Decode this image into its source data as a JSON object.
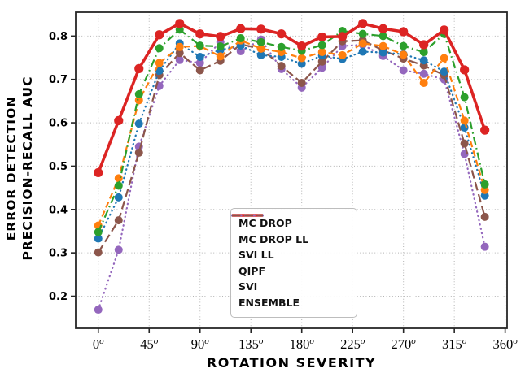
{
  "figure": {
    "ylabel_line1": "ERROR  DETECTION",
    "ylabel_line2": "PRECISION-RECALL  AUC",
    "xlabel": "ROTATION  SEVERITY"
  },
  "chart_data": {
    "type": "line",
    "title": "",
    "xlabel": "ROTATION  SEVERITY",
    "ylabel": "ERROR DETECTION PRECISION-RECALL AUC",
    "x_unit": "degrees",
    "degree_suffix": "o",
    "grid": true,
    "legend_position": "lower center",
    "xlim": [
      -20,
      361.7
    ],
    "ylim": [
      0.126,
      0.855
    ],
    "xticks": [
      0,
      45,
      90,
      135,
      180,
      225,
      270,
      315,
      360
    ],
    "yticks": [
      0.2,
      0.3,
      0.4,
      0.5,
      0.6,
      0.7,
      0.8
    ],
    "x": [
      0,
      18,
      36,
      54,
      72,
      90,
      108,
      126,
      144,
      162,
      180,
      198,
      216,
      234,
      252,
      270,
      288,
      306,
      324,
      342
    ],
    "series": [
      {
        "name": "MC DROP",
        "color": "#1f77b4",
        "line_style": "dotted",
        "line_width": 2.2,
        "marker": "circle",
        "values": [
          0.333,
          0.428,
          0.598,
          0.72,
          0.783,
          0.752,
          0.768,
          0.778,
          0.756,
          0.752,
          0.736,
          0.755,
          0.747,
          0.764,
          0.762,
          0.758,
          0.744,
          0.718,
          0.589,
          0.432
        ]
      },
      {
        "name": "MC DROP LL",
        "color": "#ff7f0e",
        "line_style": "dashed",
        "line_width": 2.2,
        "marker": "circle",
        "values": [
          0.363,
          0.472,
          0.652,
          0.738,
          0.775,
          0.777,
          0.753,
          0.79,
          0.771,
          0.763,
          0.749,
          0.763,
          0.756,
          0.783,
          0.777,
          0.757,
          0.692,
          0.749,
          0.605,
          0.445
        ]
      },
      {
        "name": "SVI LL",
        "color": "#2ca02c",
        "line_style": "dashdot",
        "line_width": 2.2,
        "marker": "circle",
        "values": [
          0.348,
          0.455,
          0.666,
          0.772,
          0.815,
          0.778,
          0.776,
          0.795,
          0.786,
          0.775,
          0.766,
          0.779,
          0.812,
          0.805,
          0.8,
          0.777,
          0.763,
          0.805,
          0.659,
          0.458
        ]
      },
      {
        "name": "QIPF",
        "color": "#dc2423",
        "line_style": "solid",
        "line_width": 3.6,
        "marker": "circle",
        "values": [
          0.485,
          0.605,
          0.725,
          0.803,
          0.829,
          0.805,
          0.799,
          0.817,
          0.816,
          0.805,
          0.777,
          0.798,
          0.799,
          0.829,
          0.817,
          0.81,
          0.78,
          0.814,
          0.722,
          0.583
        ]
      },
      {
        "name": "SVI",
        "color": "#9467bd",
        "line_style": "dotted",
        "line_width": 2.2,
        "marker": "circle",
        "values": [
          0.169,
          0.307,
          0.545,
          0.685,
          0.745,
          0.738,
          0.786,
          0.765,
          0.792,
          0.724,
          0.681,
          0.727,
          0.777,
          0.78,
          0.754,
          0.721,
          0.713,
          0.7,
          0.528,
          0.314
        ]
      },
      {
        "name": "ENSEMBLE",
        "color": "#8c564b",
        "line_style": "longdash",
        "line_width": 2.2,
        "marker": "circle",
        "values": [
          0.301,
          0.375,
          0.531,
          0.71,
          0.761,
          0.721,
          0.743,
          0.781,
          0.771,
          0.731,
          0.692,
          0.741,
          0.788,
          0.79,
          0.767,
          0.748,
          0.732,
          0.71,
          0.552,
          0.383
        ]
      }
    ],
    "grid_color": "#b3b3b3",
    "axis_color": "#262626"
  }
}
